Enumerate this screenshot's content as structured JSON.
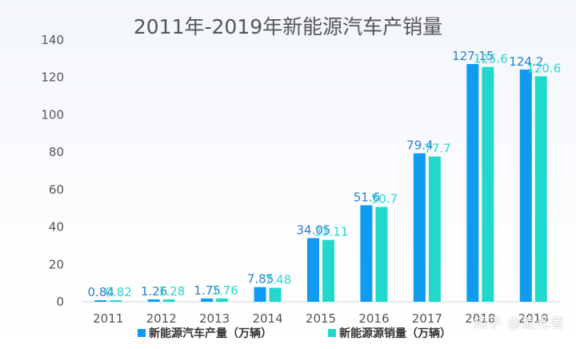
{
  "watermark": "知乎 @追光者",
  "chart_data": {
    "type": "bar",
    "title": "2011年-2019年新能源汽车产销量",
    "xlabel": "",
    "ylabel": "",
    "categories": [
      "2011",
      "2012",
      "2013",
      "2014",
      "2015",
      "2016",
      "2017",
      "2018",
      "2019"
    ],
    "ylim": [
      0,
      140
    ],
    "yticks": [
      0,
      20,
      40,
      60,
      80,
      100,
      120,
      140
    ],
    "grid": false,
    "legend_position": "bottom",
    "series": [
      {
        "name": "新能源汽车产量（万辆）",
        "color": "#0f9bf0",
        "values": [
          0.84,
          1.26,
          1.75,
          7.85,
          34.05,
          51.6,
          79.4,
          127.15,
          124.2
        ],
        "labels": [
          "0.84",
          "1.26",
          "1.75",
          "7.85",
          "34.05",
          "51.6",
          "79.4",
          "127.15",
          "124.2"
        ]
      },
      {
        "name": "新能源源销量（万辆）",
        "color": "#22d8cc",
        "values": [
          0.82,
          1.28,
          1.76,
          7.48,
          33.11,
          50.7,
          77.7,
          125.6,
          120.6
        ],
        "labels": [
          "0.82",
          "1.28",
          "1.76",
          "7.48",
          "33.11",
          "50.7",
          "77.7",
          "125.6",
          "120.6"
        ]
      }
    ]
  }
}
